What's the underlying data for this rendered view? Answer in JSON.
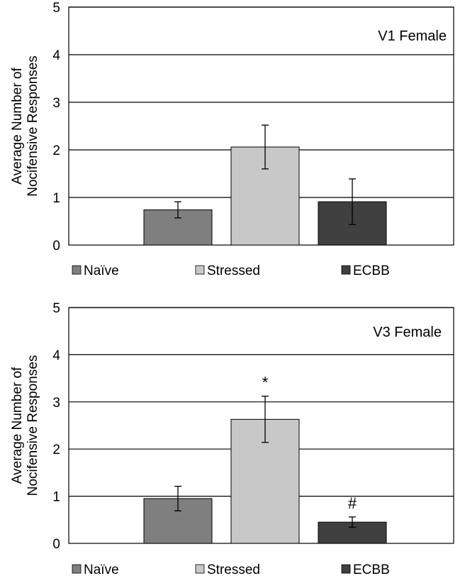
{
  "chart_data": [
    {
      "type": "bar",
      "title": "V1 Female",
      "ylabel": [
        "Average Number of",
        "Nocifensive Responses"
      ],
      "categories": [
        "Naïve",
        "Stressed",
        "ECBB"
      ],
      "values": [
        0.74,
        2.06,
        0.91
      ],
      "errors": [
        0.17,
        0.46,
        0.48
      ],
      "colors": [
        "#7f7f7f",
        "#c8c8c8",
        "#404040"
      ],
      "annotations": [
        "",
        "",
        ""
      ],
      "ylim": [
        0,
        5
      ],
      "yticks": [
        "0",
        "1",
        "2",
        "3",
        "4",
        "5"
      ],
      "legend": [
        "Naïve",
        "Stressed",
        "ECBB"
      ],
      "grid": true
    },
    {
      "type": "bar",
      "title": "V3 Female",
      "ylabel": [
        "Average Number of",
        "Nocifensive Responses"
      ],
      "categories": [
        "Naïve",
        "Stressed",
        "ECBB"
      ],
      "values": [
        0.95,
        2.63,
        0.45
      ],
      "errors": [
        0.26,
        0.49,
        0.11
      ],
      "colors": [
        "#7f7f7f",
        "#c8c8c8",
        "#404040"
      ],
      "annotations": [
        "",
        "*",
        "#"
      ],
      "ylim": [
        0,
        5
      ],
      "yticks": [
        "0",
        "1",
        "2",
        "3",
        "4",
        "5"
      ],
      "legend": [
        "Naïve",
        "Stressed",
        "ECBB"
      ],
      "grid": true
    }
  ]
}
